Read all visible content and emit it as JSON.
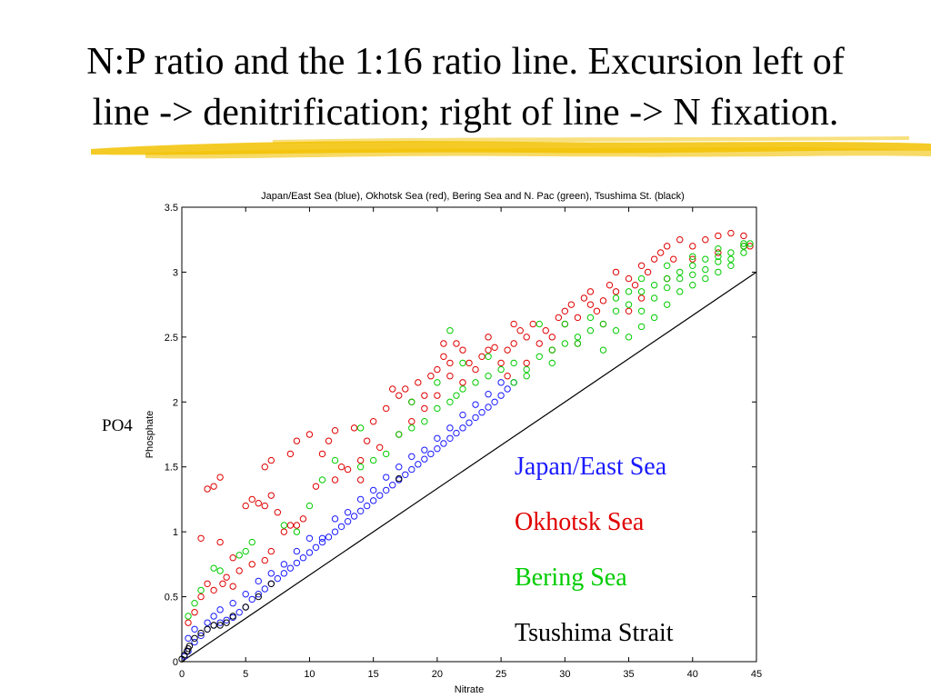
{
  "slide": {
    "title_line1": "N:P ratio and the 1:16 ratio line.  Excursion left of",
    "title_line2": "line -> denitrification; right of line -> N fixation.",
    "po4_label": "PO4",
    "legend": [
      {
        "label": "Japan/East Sea",
        "color": "#1a1aff"
      },
      {
        "label": "Okhotsk Sea",
        "color": "#e00000"
      },
      {
        "label": "Bering Sea",
        "color": "#00cc00"
      },
      {
        "label": "Tsushima Strait",
        "color": "#000000"
      }
    ]
  },
  "colors": {
    "underline": "#f2c200"
  },
  "chart_data": {
    "type": "scatter",
    "title": "Japan/East Sea (blue), Okhotsk Sea (red), Bering Sea and N. Pac (green), Tsushima St. (black)",
    "xlabel": "Nitrate",
    "ylabel": "Phosphate",
    "xlim": [
      0,
      45
    ],
    "ylim": [
      0,
      3.5
    ],
    "xticks": [
      0,
      5,
      10,
      15,
      20,
      25,
      30,
      35,
      40,
      45
    ],
    "yticks": [
      0,
      0.5,
      1,
      1.5,
      2,
      2.5,
      3,
      3.5
    ],
    "grid": false,
    "marker": "open-circle",
    "reference_line": {
      "name": "1:16",
      "x": [
        0,
        45
      ],
      "y": [
        0,
        3.0
      ]
    },
    "series": [
      {
        "color": "#1a1aff",
        "points": [
          [
            0.2,
            0.04
          ],
          [
            0.5,
            0.08
          ],
          [
            1,
            0.15
          ],
          [
            1.5,
            0.2
          ],
          [
            2,
            0.25
          ],
          [
            2.5,
            0.28
          ],
          [
            3,
            0.3
          ],
          [
            3.5,
            0.32
          ],
          [
            4,
            0.34
          ],
          [
            4.5,
            0.38
          ],
          [
            5,
            0.42
          ],
          [
            5.5,
            0.48
          ],
          [
            6,
            0.52
          ],
          [
            6.5,
            0.56
          ],
          [
            7,
            0.6
          ],
          [
            7.5,
            0.64
          ],
          [
            8,
            0.68
          ],
          [
            8.5,
            0.72
          ],
          [
            9,
            0.76
          ],
          [
            9.5,
            0.8
          ],
          [
            10,
            0.84
          ],
          [
            10.5,
            0.88
          ],
          [
            11,
            0.92
          ],
          [
            11.5,
            0.96
          ],
          [
            12,
            1.0
          ],
          [
            12.5,
            1.04
          ],
          [
            13,
            1.08
          ],
          [
            13.5,
            1.12
          ],
          [
            14,
            1.16
          ],
          [
            14.5,
            1.2
          ],
          [
            15,
            1.24
          ],
          [
            15.5,
            1.28
          ],
          [
            16,
            1.32
          ],
          [
            16.5,
            1.36
          ],
          [
            17,
            1.4
          ],
          [
            17.5,
            1.44
          ],
          [
            18,
            1.48
          ],
          [
            18.5,
            1.52
          ],
          [
            19,
            1.56
          ],
          [
            19.5,
            1.6
          ],
          [
            20,
            1.64
          ],
          [
            20.5,
            1.68
          ],
          [
            21,
            1.72
          ],
          [
            21.5,
            1.76
          ],
          [
            22,
            1.8
          ],
          [
            22.5,
            1.84
          ],
          [
            23,
            1.88
          ],
          [
            23.5,
            1.92
          ],
          [
            24,
            1.96
          ],
          [
            24.5,
            2.0
          ],
          [
            25,
            2.05
          ],
          [
            25.5,
            2.1
          ],
          [
            26,
            2.15
          ],
          [
            3,
            0.4
          ],
          [
            5,
            0.52
          ],
          [
            8,
            0.75
          ],
          [
            12,
            1.1
          ],
          [
            16,
            1.42
          ],
          [
            20,
            1.72
          ],
          [
            24,
            2.06
          ],
          [
            6,
            0.62
          ],
          [
            9,
            0.85
          ],
          [
            14,
            1.25
          ],
          [
            18,
            1.58
          ],
          [
            22,
            1.9
          ],
          [
            1,
            0.25
          ],
          [
            2,
            0.3
          ],
          [
            4,
            0.45
          ],
          [
            7,
            0.68
          ],
          [
            11,
            0.95
          ],
          [
            13,
            1.15
          ],
          [
            17,
            1.5
          ],
          [
            19,
            1.63
          ],
          [
            21,
            1.8
          ],
          [
            23,
            1.98
          ],
          [
            25,
            2.15
          ],
          [
            10,
            0.95
          ],
          [
            15,
            1.32
          ],
          [
            2.5,
            0.35
          ],
          [
            0.5,
            0.18
          ]
        ]
      },
      {
        "color": "#e00000",
        "points": [
          [
            0.5,
            0.3
          ],
          [
            1,
            0.38
          ],
          [
            1.5,
            0.5
          ],
          [
            2,
            0.6
          ],
          [
            2.5,
            1.35
          ],
          [
            3,
            1.42
          ],
          [
            2,
            1.33
          ],
          [
            1.5,
            0.95
          ],
          [
            3,
            0.92
          ],
          [
            4,
            0.8
          ],
          [
            5,
            1.2
          ],
          [
            5.5,
            1.25
          ],
          [
            6,
            1.22
          ],
          [
            6.5,
            1.2
          ],
          [
            7,
            1.28
          ],
          [
            7,
            0.85
          ],
          [
            8,
            1.0
          ],
          [
            8.5,
            1.05
          ],
          [
            7.5,
            1.15
          ],
          [
            9,
            1.05
          ],
          [
            9.5,
            1.1
          ],
          [
            6.5,
            1.5
          ],
          [
            7,
            1.55
          ],
          [
            8.5,
            1.6
          ],
          [
            9,
            1.7
          ],
          [
            10,
            1.75
          ],
          [
            11,
            1.6
          ],
          [
            11.5,
            1.7
          ],
          [
            12,
            1.78
          ],
          [
            12.5,
            1.5
          ],
          [
            13,
            1.48
          ],
          [
            14,
            1.4
          ],
          [
            13.5,
            1.8
          ],
          [
            14.5,
            1.7
          ],
          [
            15,
            1.85
          ],
          [
            16,
            1.95
          ],
          [
            16.5,
            2.1
          ],
          [
            17,
            2.05
          ],
          [
            17.5,
            2.1
          ],
          [
            18,
            2.0
          ],
          [
            18.5,
            2.15
          ],
          [
            19,
            2.05
          ],
          [
            19.5,
            2.2
          ],
          [
            20,
            2.25
          ],
          [
            20.5,
            2.35
          ],
          [
            21,
            2.3
          ],
          [
            21.5,
            2.45
          ],
          [
            22,
            2.4
          ],
          [
            22.5,
            2.3
          ],
          [
            23,
            2.25
          ],
          [
            23.5,
            2.35
          ],
          [
            24,
            2.4
          ],
          [
            24.5,
            2.42
          ],
          [
            25,
            2.3
          ],
          [
            25.5,
            2.4
          ],
          [
            26,
            2.45
          ],
          [
            26.5,
            2.55
          ],
          [
            27,
            2.5
          ],
          [
            27.5,
            2.6
          ],
          [
            28,
            2.45
          ],
          [
            28.5,
            2.55
          ],
          [
            29,
            2.5
          ],
          [
            29.5,
            2.65
          ],
          [
            30,
            2.7
          ],
          [
            30.5,
            2.75
          ],
          [
            31,
            2.65
          ],
          [
            31.5,
            2.8
          ],
          [
            32,
            2.85
          ],
          [
            32.5,
            2.7
          ],
          [
            33,
            2.78
          ],
          [
            33.5,
            2.9
          ],
          [
            34,
            2.85
          ],
          [
            35,
            2.95
          ],
          [
            35.5,
            2.9
          ],
          [
            36,
            3.05
          ],
          [
            36.5,
            3.0
          ],
          [
            37,
            3.1
          ],
          [
            37.5,
            3.15
          ],
          [
            38,
            3.2
          ],
          [
            38.5,
            3.1
          ],
          [
            39,
            3.25
          ],
          [
            40,
            3.2
          ],
          [
            41,
            3.25
          ],
          [
            42,
            3.28
          ],
          [
            43,
            3.3
          ],
          [
            44,
            3.28
          ],
          [
            44.5,
            3.2
          ],
          [
            20,
            2.05
          ],
          [
            21,
            2.2
          ],
          [
            22,
            2.15
          ],
          [
            25.5,
            2.2
          ],
          [
            27,
            2.3
          ],
          [
            29,
            2.4
          ],
          [
            31,
            2.45
          ],
          [
            33,
            2.6
          ],
          [
            35,
            2.7
          ],
          [
            36,
            2.8
          ],
          [
            38,
            2.95
          ],
          [
            40,
            3.1
          ],
          [
            42,
            3.15
          ],
          [
            44,
            3.2
          ],
          [
            3.5,
            0.65
          ],
          [
            4.5,
            0.7
          ],
          [
            5.5,
            0.75
          ],
          [
            6.5,
            0.78
          ],
          [
            2.5,
            0.55
          ],
          [
            3.2,
            0.6
          ],
          [
            4,
            0.58
          ],
          [
            10.5,
            1.35
          ],
          [
            12,
            1.4
          ],
          [
            14,
            1.55
          ],
          [
            15.5,
            1.65
          ],
          [
            17,
            1.75
          ],
          [
            18,
            1.85
          ],
          [
            19,
            1.95
          ],
          [
            20.5,
            2.45
          ],
          [
            24,
            2.5
          ],
          [
            30,
            2.6
          ],
          [
            32,
            2.75
          ],
          [
            34,
            3.0
          ],
          [
            26,
            2.6
          ]
        ]
      },
      {
        "color": "#00cc00",
        "points": [
          [
            0.5,
            0.35
          ],
          [
            1,
            0.45
          ],
          [
            1.5,
            0.55
          ],
          [
            2.5,
            0.72
          ],
          [
            3,
            0.7
          ],
          [
            4.5,
            0.82
          ],
          [
            5,
            0.85
          ],
          [
            5.5,
            0.92
          ],
          [
            8,
            1.05
          ],
          [
            9,
            1.0
          ],
          [
            10,
            1.2
          ],
          [
            11,
            1.4
          ],
          [
            12,
            1.55
          ],
          [
            14,
            1.5
          ],
          [
            15,
            1.55
          ],
          [
            16,
            1.6
          ],
          [
            17,
            1.75
          ],
          [
            18,
            1.8
          ],
          [
            19,
            1.85
          ],
          [
            20,
            1.95
          ],
          [
            21,
            2.0
          ],
          [
            21.5,
            2.05
          ],
          [
            22,
            2.1
          ],
          [
            23,
            2.15
          ],
          [
            24,
            2.2
          ],
          [
            25,
            2.25
          ],
          [
            26,
            2.15
          ],
          [
            27,
            2.25
          ],
          [
            28,
            2.35
          ],
          [
            29,
            2.4
          ],
          [
            30,
            2.45
          ],
          [
            31,
            2.5
          ],
          [
            32,
            2.55
          ],
          [
            33,
            2.6
          ],
          [
            34,
            2.7
          ],
          [
            35,
            2.75
          ],
          [
            36,
            2.85
          ],
          [
            37,
            2.9
          ],
          [
            38,
            2.95
          ],
          [
            39,
            3.0
          ],
          [
            40,
            3.05
          ],
          [
            41,
            3.1
          ],
          [
            42,
            3.12
          ],
          [
            43,
            3.15
          ],
          [
            44,
            3.2
          ],
          [
            44.5,
            3.22
          ],
          [
            35,
            2.5
          ],
          [
            36,
            2.58
          ],
          [
            37,
            2.65
          ],
          [
            38,
            2.75
          ],
          [
            39,
            2.85
          ],
          [
            40,
            2.9
          ],
          [
            41,
            2.95
          ],
          [
            42,
            3.0
          ],
          [
            43,
            3.05
          ],
          [
            33,
            2.4
          ],
          [
            34,
            2.55
          ],
          [
            31,
            2.45
          ],
          [
            29,
            2.3
          ],
          [
            27,
            2.2
          ],
          [
            26,
            2.3
          ],
          [
            24,
            2.35
          ],
          [
            22,
            2.3
          ],
          [
            20,
            2.15
          ],
          [
            18,
            2.0
          ],
          [
            14,
            1.8
          ],
          [
            21,
            2.55
          ],
          [
            28,
            2.6
          ],
          [
            30,
            2.6
          ],
          [
            32,
            2.65
          ],
          [
            34,
            2.8
          ],
          [
            36,
            2.95
          ],
          [
            38,
            3.05
          ],
          [
            40,
            3.12
          ],
          [
            42,
            3.18
          ],
          [
            44,
            3.22
          ],
          [
            37,
            2.8
          ],
          [
            39,
            2.95
          ],
          [
            41,
            3.02
          ],
          [
            43,
            3.1
          ],
          [
            35,
            2.85
          ],
          [
            36,
            2.7
          ],
          [
            38,
            2.88
          ],
          [
            40,
            2.98
          ],
          [
            42,
            3.08
          ],
          [
            44,
            3.15
          ]
        ]
      },
      {
        "color": "#000000",
        "points": [
          [
            0,
            0.02
          ],
          [
            0.2,
            0.05
          ],
          [
            0.4,
            0.08
          ],
          [
            0.5,
            0.1
          ],
          [
            0.6,
            0.12
          ],
          [
            1,
            0.18
          ],
          [
            1.5,
            0.22
          ],
          [
            2,
            0.25
          ],
          [
            2.5,
            0.28
          ],
          [
            3,
            0.28
          ],
          [
            3.5,
            0.3
          ],
          [
            4,
            0.35
          ],
          [
            5,
            0.42
          ],
          [
            6,
            0.5
          ],
          [
            7,
            0.6
          ],
          [
            17,
            1.41
          ]
        ]
      }
    ]
  }
}
